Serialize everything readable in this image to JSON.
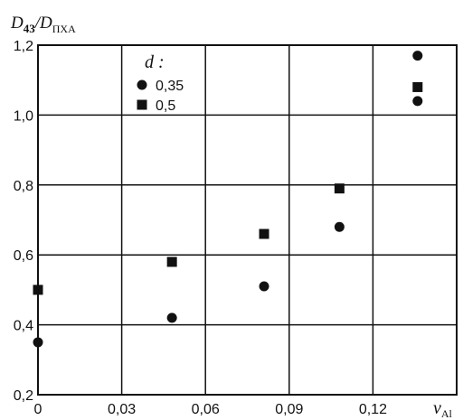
{
  "chart_data": {
    "type": "scatter",
    "ylabel": {
      "main": "D",
      "sub1": "43",
      "sep": "/D",
      "sub2": "ПХА"
    },
    "xlabel": {
      "main": "ν",
      "sub": "Al"
    },
    "xlim": [
      0,
      0.15
    ],
    "ylim": [
      0.2,
      1.2
    ],
    "grid": true,
    "legend": {
      "title": "d :",
      "placement": "top-center"
    },
    "x_ticks": [
      {
        "value": 0,
        "label": "0"
      },
      {
        "value": 0.03,
        "label": "0,03"
      },
      {
        "value": 0.06,
        "label": "0,06"
      },
      {
        "value": 0.09,
        "label": "0,09"
      },
      {
        "value": 0.12,
        "label": "0,12"
      }
    ],
    "y_ticks": [
      {
        "value": 0.2,
        "label": "0,2"
      },
      {
        "value": 0.4,
        "label": "0,4"
      },
      {
        "value": 0.6,
        "label": "0,6"
      },
      {
        "value": 0.8,
        "label": "0,8"
      },
      {
        "value": 1.0,
        "label": "1,0"
      },
      {
        "value": 1.2,
        "label": "1,2"
      }
    ],
    "series": [
      {
        "name": "0,35",
        "marker": "circle",
        "points": [
          {
            "x": 0.0,
            "y": 0.35
          },
          {
            "x": 0.048,
            "y": 0.42
          },
          {
            "x": 0.081,
            "y": 0.51
          },
          {
            "x": 0.108,
            "y": 0.68
          },
          {
            "x": 0.136,
            "y": 1.04
          },
          {
            "x": 0.136,
            "y": 1.17
          }
        ]
      },
      {
        "name": "0,5",
        "marker": "square",
        "points": [
          {
            "x": 0.0,
            "y": 0.5
          },
          {
            "x": 0.048,
            "y": 0.58
          },
          {
            "x": 0.081,
            "y": 0.66
          },
          {
            "x": 0.108,
            "y": 0.79
          },
          {
            "x": 0.136,
            "y": 1.08
          }
        ]
      }
    ]
  }
}
